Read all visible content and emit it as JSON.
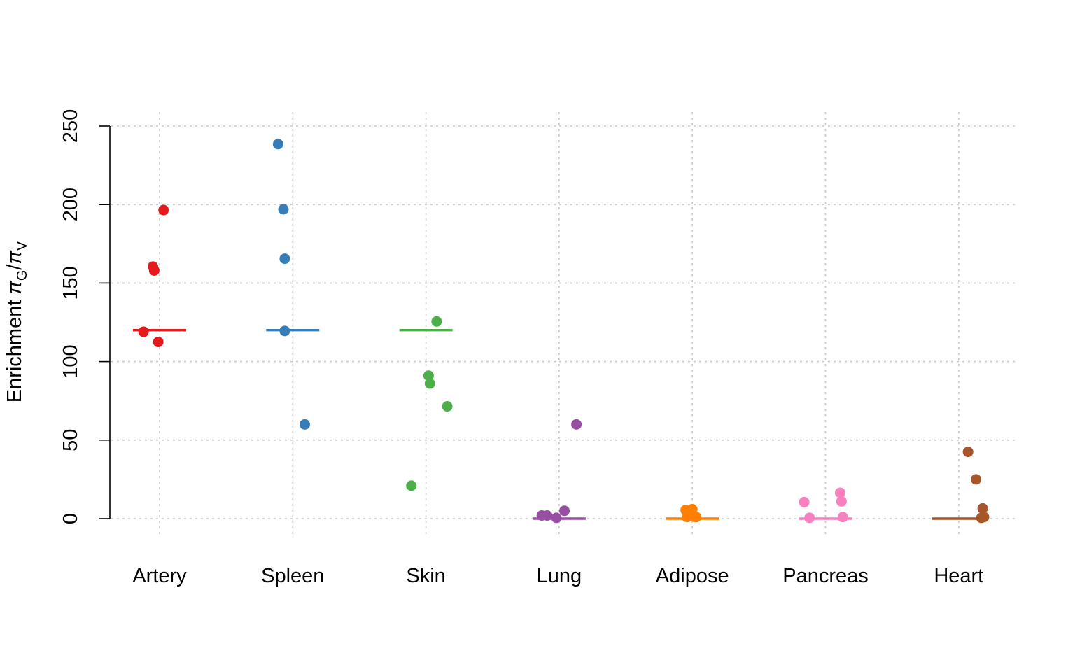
{
  "chart_data": {
    "type": "scatter",
    "title": "",
    "xlabel": "",
    "ylabel": {
      "prefix": "Enrichment ",
      "numerator_symbol": "π",
      "numerator_sub": "G",
      "slash": "/",
      "denominator_symbol": "π",
      "denominator_sub": "V"
    },
    "ylim": [
      -15,
      260
    ],
    "yticks": [
      0,
      50,
      100,
      150,
      200,
      250
    ],
    "grid": true,
    "categories": [
      "Artery",
      "Spleen",
      "Skin",
      "Lung",
      "Adipose",
      "Pancreas",
      "Heart"
    ],
    "series": [
      {
        "category": "Artery",
        "color": "#e41a1c",
        "median": 120,
        "values": [
          196.5,
          160.5,
          158,
          119,
          112.5
        ],
        "jitter": [
          0.03,
          -0.05,
          -0.04,
          -0.12,
          -0.01
        ]
      },
      {
        "category": "Spleen",
        "color": "#377eb8",
        "median": 120,
        "values": [
          238.5,
          197,
          165.5,
          119.5,
          60
        ],
        "jitter": [
          -0.11,
          -0.07,
          -0.06,
          -0.06,
          0.09
        ]
      },
      {
        "category": "Skin",
        "color": "#4daf4a",
        "median": 120,
        "values": [
          125.5,
          91,
          86,
          71.5,
          21
        ],
        "jitter": [
          0.08,
          0.02,
          0.03,
          0.16,
          -0.11
        ]
      },
      {
        "category": "Lung",
        "color": "#984ea3",
        "median": 0,
        "values": [
          60,
          5,
          2,
          2,
          0.5
        ],
        "jitter": [
          0.13,
          0.04,
          -0.13,
          -0.09,
          -0.02
        ]
      },
      {
        "category": "Adipose",
        "color": "#ff7f00",
        "median": 0,
        "values": [
          6,
          5.5,
          1,
          1,
          1
        ],
        "jitter": [
          0.0,
          -0.05,
          -0.04,
          0.02,
          0.03
        ]
      },
      {
        "category": "Pancreas",
        "color": "#f781bf",
        "median": 0,
        "values": [
          16.5,
          11,
          10.5,
          1,
          0.5
        ],
        "jitter": [
          0.11,
          0.12,
          -0.16,
          0.13,
          -0.12
        ]
      },
      {
        "category": "Heart",
        "color": "#a65628",
        "median": 0,
        "values": [
          42.5,
          25,
          6.5,
          1,
          0.5
        ],
        "jitter": [
          0.07,
          0.13,
          0.18,
          0.19,
          0.17
        ]
      }
    ]
  }
}
